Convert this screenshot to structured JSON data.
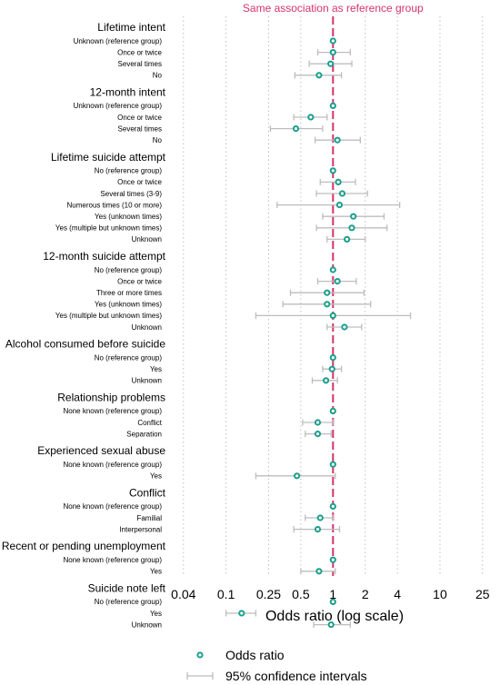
{
  "colors": {
    "point_stroke": "#1a9e8c",
    "point_fill": "#ffffff",
    "ci_line": "#bdbdbd",
    "reference_line": "#d6336c",
    "grid": "#bfbfbf"
  },
  "chart_data": {
    "type": "forest",
    "reference_label": "Same association as reference group",
    "reference_value": 1,
    "xlabel": "Odds ratio (log scale)",
    "x_scale": "log",
    "xlim": [
      0.03,
      30
    ],
    "x_ticks": [
      0.04,
      0.1,
      0.25,
      0.5,
      1,
      2,
      4,
      10,
      25
    ],
    "x_tick_labels": [
      "0.04",
      "0.1",
      "0.25",
      "0.5",
      "1",
      "2",
      "4",
      "10",
      "25"
    ],
    "grid": "vertical dotted",
    "legend": {
      "placement": "bottom",
      "items": [
        "Odds ratio",
        "95% confidence intervals"
      ]
    },
    "groups": [
      {
        "label": "Lifetime intent",
        "rows": [
          {
            "label": "Unknown (reference group)",
            "or": 1.0,
            "lo": 1.0,
            "hi": 1.0
          },
          {
            "label": "Once or twice",
            "or": 1.0,
            "lo": 0.72,
            "hi": 1.45
          },
          {
            "label": "Several times",
            "or": 0.95,
            "lo": 0.6,
            "hi": 1.5
          },
          {
            "label": "No",
            "or": 0.74,
            "lo": 0.44,
            "hi": 1.2
          }
        ]
      },
      {
        "label": "12-month intent",
        "rows": [
          {
            "label": "Unknown (reference group)",
            "or": 1.0,
            "lo": 1.0,
            "hi": 1.0
          },
          {
            "label": "Once or twice",
            "or": 0.62,
            "lo": 0.43,
            "hi": 0.88
          },
          {
            "label": "Several times",
            "or": 0.45,
            "lo": 0.26,
            "hi": 0.8
          },
          {
            "label": "No",
            "or": 1.1,
            "lo": 0.68,
            "hi": 1.8
          }
        ]
      },
      {
        "label": "Lifetime suicide attempt",
        "rows": [
          {
            "label": "No (reference group)",
            "or": 1.0,
            "lo": 1.0,
            "hi": 1.0
          },
          {
            "label": "Once or twice",
            "or": 1.12,
            "lo": 0.76,
            "hi": 1.62
          },
          {
            "label": "Several times (3-9)",
            "or": 1.22,
            "lo": 0.7,
            "hi": 2.1
          },
          {
            "label": "Numerous times (10 or more)",
            "or": 1.15,
            "lo": 0.3,
            "hi": 4.2
          },
          {
            "label": "Yes (unknown times)",
            "or": 1.55,
            "lo": 0.8,
            "hi": 3.0
          },
          {
            "label": "Yes (multiple but unknown times)",
            "or": 1.5,
            "lo": 0.7,
            "hi": 3.2
          },
          {
            "label": "Unknown",
            "or": 1.35,
            "lo": 0.88,
            "hi": 2.0
          }
        ]
      },
      {
        "label": "12-month suicide attempt",
        "rows": [
          {
            "label": "No (reference group)",
            "or": 1.0,
            "lo": 1.0,
            "hi": 1.0
          },
          {
            "label": "Once or twice",
            "or": 1.1,
            "lo": 0.72,
            "hi": 1.65
          },
          {
            "label": "Three or more times",
            "or": 0.88,
            "lo": 0.4,
            "hi": 1.95
          },
          {
            "label": "Yes (unknown times)",
            "or": 0.88,
            "lo": 0.34,
            "hi": 2.25
          },
          {
            "label": "Yes (multiple but unknown times)",
            "or": 1.0,
            "lo": 0.19,
            "hi": 5.3
          },
          {
            "label": "Unknown",
            "or": 1.28,
            "lo": 0.88,
            "hi": 1.85
          }
        ]
      },
      {
        "label": "Alcohol consumed before suicide",
        "rows": [
          {
            "label": "No (reference group)",
            "or": 1.0,
            "lo": 1.0,
            "hi": 1.0
          },
          {
            "label": "Yes",
            "or": 0.98,
            "lo": 0.8,
            "hi": 1.2
          },
          {
            "label": "Unknown",
            "or": 0.86,
            "lo": 0.64,
            "hi": 1.1
          }
        ]
      },
      {
        "label": "Relationship problems",
        "rows": [
          {
            "label": "None known (reference group)",
            "or": 1.0,
            "lo": 1.0,
            "hi": 1.0
          },
          {
            "label": "Conflict",
            "or": 0.72,
            "lo": 0.52,
            "hi": 1.0
          },
          {
            "label": "Separation",
            "or": 0.72,
            "lo": 0.55,
            "hi": 0.96
          }
        ]
      },
      {
        "label": "Experienced sexual abuse",
        "rows": [
          {
            "label": "None known (reference group)",
            "or": 1.0,
            "lo": 1.0,
            "hi": 1.0
          },
          {
            "label": "Yes",
            "or": 0.46,
            "lo": 0.19,
            "hi": 1.05
          }
        ]
      },
      {
        "label": "Conflict",
        "rows": [
          {
            "label": "None known (reference group)",
            "or": 1.0,
            "lo": 1.0,
            "hi": 1.0
          },
          {
            "label": "Familial",
            "or": 0.76,
            "lo": 0.55,
            "hi": 1.0
          },
          {
            "label": "Interpersonal",
            "or": 0.72,
            "lo": 0.43,
            "hi": 1.15
          }
        ]
      },
      {
        "label": "Recent or pending unemployment",
        "rows": [
          {
            "label": "None known (reference group)",
            "or": 1.0,
            "lo": 1.0,
            "hi": 1.0
          },
          {
            "label": "Yes",
            "or": 0.74,
            "lo": 0.5,
            "hi": 1.05
          }
        ]
      },
      {
        "label": "Suicide note left",
        "rows": [
          {
            "label": "No (reference group)",
            "or": 1.0,
            "lo": 1.0,
            "hi": 1.0
          },
          {
            "label": "Yes",
            "or": 0.14,
            "lo": 0.1,
            "hi": 0.19
          },
          {
            "label": "Unknown",
            "or": 0.96,
            "lo": 0.66,
            "hi": 1.45
          }
        ]
      }
    ]
  }
}
